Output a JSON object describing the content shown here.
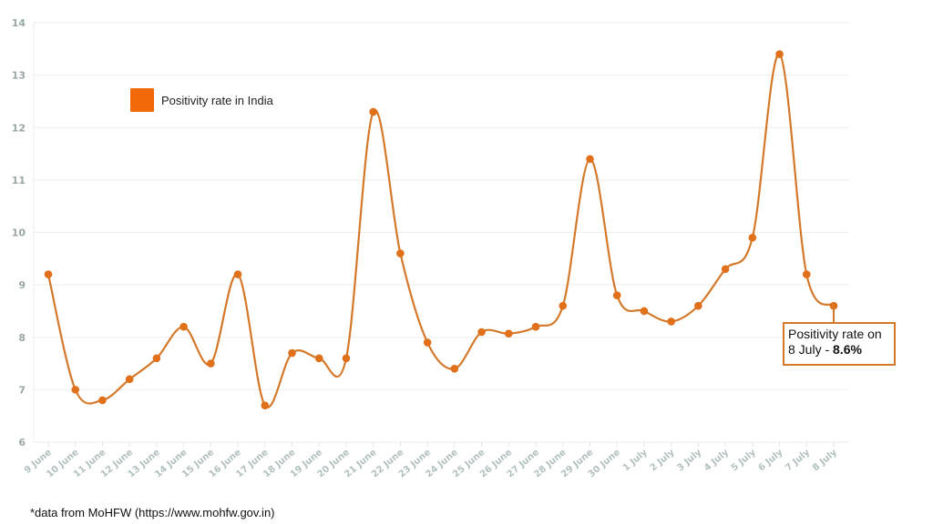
{
  "chart_data": {
    "type": "line",
    "title": "",
    "xlabel": "",
    "ylabel": "",
    "ylim": [
      6,
      14
    ],
    "yticks": [
      6,
      7,
      8,
      9,
      10,
      11,
      12,
      13,
      14
    ],
    "grid": true,
    "legend_position": "top-left (inside)",
    "categories": [
      "9 June",
      "10 June",
      "11 June",
      "12 June",
      "13 June",
      "14 June",
      "15 June",
      "16 June",
      "17 June",
      "18 June",
      "19 June",
      "20 June",
      "21 June",
      "22 June",
      "23 June",
      "24 June",
      "25 June",
      "26 June",
      "27 June",
      "28 June",
      "29 June",
      "30 June",
      "1 July",
      "2 July",
      "3 July",
      "4 July",
      "5 July",
      "6 July",
      "7 July",
      "8 July"
    ],
    "series": [
      {
        "name": "Positivity rate in India",
        "color": "#d4782a",
        "values": [
          9.2,
          7.0,
          6.8,
          7.2,
          7.6,
          8.2,
          7.5,
          9.2,
          6.7,
          7.7,
          7.6,
          7.6,
          12.3,
          9.6,
          7.9,
          7.4,
          8.1,
          8.07,
          8.2,
          8.6,
          11.4,
          8.8,
          8.5,
          8.3,
          8.6,
          9.3,
          9.9,
          13.4,
          9.2,
          8.6
        ]
      }
    ],
    "annotations": [
      {
        "target": "8 July",
        "text_line1": "Positivity rate on",
        "text_line2_prefix": "8 July - ",
        "text_line2_bold": "8.6%"
      }
    ]
  },
  "legend": {
    "label": "Positivity rate in India",
    "color": "#f06a0a"
  },
  "callout": {
    "line1": "Positivity rate on",
    "line2_prefix": "8 July - ",
    "line2_bold": "8.6%"
  },
  "footnote": "*data from MoHFW (https://www.mohfw.gov.in)"
}
